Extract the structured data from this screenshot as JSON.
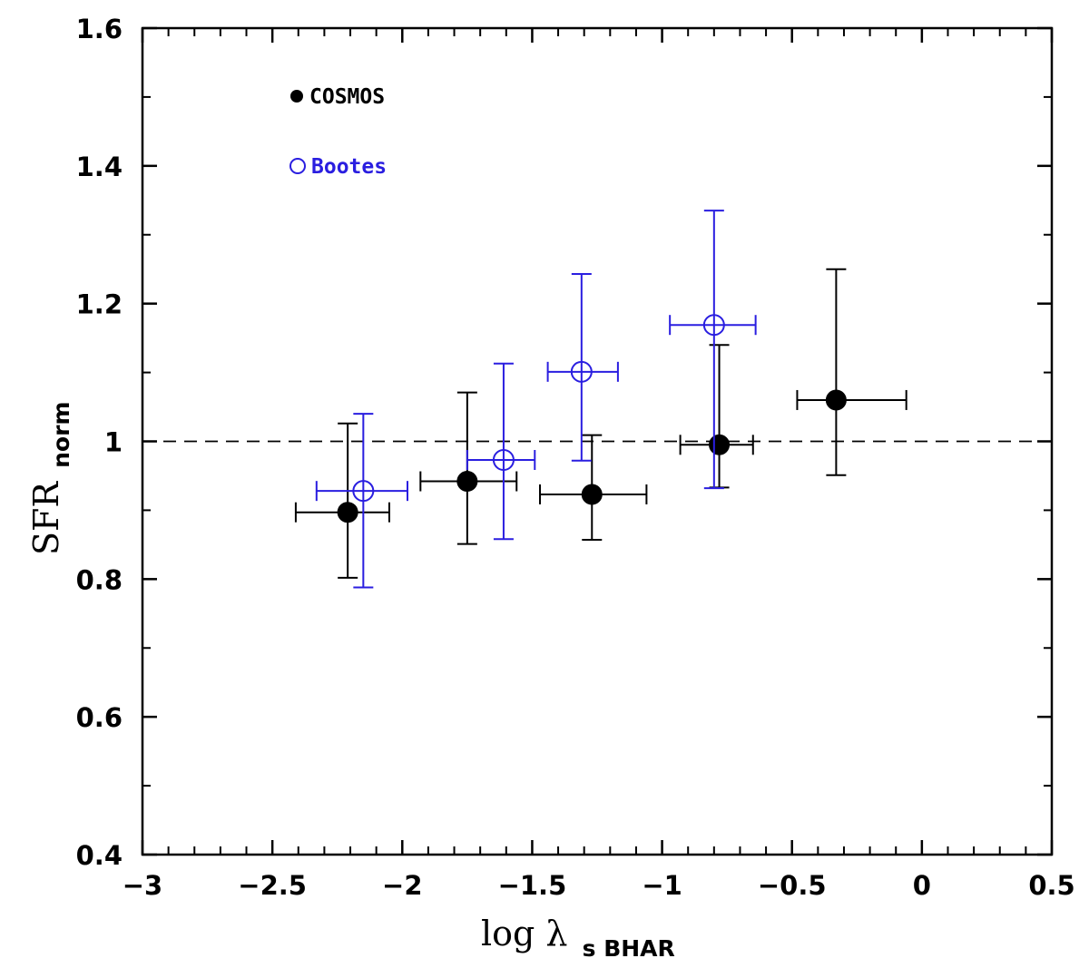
{
  "chart_data": {
    "type": "scatter",
    "xlim": [
      -3,
      0.5
    ],
    "ylim": [
      0.4,
      1.6
    ],
    "x_ticks": [
      -3,
      -2.5,
      -2,
      -1.5,
      -1,
      -0.5,
      0,
      0.5
    ],
    "x_tick_labels": [
      "−3",
      "−2.5",
      "−2",
      "−1.5",
      "−1",
      "−0.5",
      "0",
      "0.5"
    ],
    "y_ticks": [
      0.4,
      0.6,
      0.8,
      1.0,
      1.2,
      1.4,
      1.6
    ],
    "y_tick_labels": [
      "0.4",
      "0.6",
      "0.8",
      "1",
      "1.2",
      "1.4",
      "1.6"
    ],
    "xlabel": {
      "main": "log λ",
      "sub": "s BHAR"
    },
    "ylabel": {
      "main": "SFR",
      "sub": "norm"
    },
    "reference_line": {
      "y": 1.0,
      "style": "dashed"
    },
    "series": [
      {
        "name": "COSMOS",
        "marker": "filled-circle",
        "color": "#000000",
        "points": [
          {
            "x": -2.21,
            "y": 0.897,
            "xerr_low": 0.2,
            "xerr_high": 0.16,
            "y_low": 0.802,
            "y_high": 1.026
          },
          {
            "x": -1.75,
            "y": 0.942,
            "xerr_low": 0.18,
            "xerr_high": 0.19,
            "y_low": 0.851,
            "y_high": 1.071
          },
          {
            "x": -1.27,
            "y": 0.923,
            "xerr_low": 0.2,
            "xerr_high": 0.21,
            "y_low": 0.857,
            "y_high": 1.009
          },
          {
            "x": -0.78,
            "y": 0.995,
            "xerr_low": 0.15,
            "xerr_high": 0.13,
            "y_low": 0.933,
            "y_high": 1.14
          },
          {
            "x": -0.33,
            "y": 1.06,
            "xerr_low": 0.15,
            "xerr_high": 0.27,
            "y_low": 0.951,
            "y_high": 1.25
          }
        ]
      },
      {
        "name": "Bootes",
        "marker": "open-circle",
        "color": "#2a1ee0",
        "points": [
          {
            "x": -2.15,
            "y": 0.928,
            "xerr_low": 0.18,
            "xerr_high": 0.17,
            "y_low": 0.788,
            "y_high": 1.04
          },
          {
            "x": -1.61,
            "y": 0.973,
            "xerr_low": 0.14,
            "xerr_high": 0.12,
            "y_low": 0.858,
            "y_high": 1.113
          },
          {
            "x": -1.31,
            "y": 1.101,
            "xerr_low": 0.13,
            "xerr_high": 0.14,
            "y_low": 0.972,
            "y_high": 1.243
          },
          {
            "x": -0.8,
            "y": 1.169,
            "xerr_low": 0.17,
            "xerr_high": 0.16,
            "y_low": 0.932,
            "y_high": 1.335
          }
        ]
      }
    ],
    "legend": [
      {
        "label": "COSMOS",
        "marker": "filled-circle",
        "color": "#000000"
      },
      {
        "label": "Bootes",
        "marker": "open-circle",
        "color": "#2a1ee0"
      }
    ]
  }
}
